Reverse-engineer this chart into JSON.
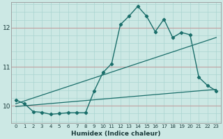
{
  "title": "",
  "xlabel": "Humidex (Indice chaleur)",
  "background_color": "#cce8e4",
  "grid_color_minor": "#aad4d0",
  "grid_color_major": "#c0a0a0",
  "line_color": "#1a6e6a",
  "xlim": [
    -0.5,
    23.5
  ],
  "ylim": [
    9.55,
    12.65
  ],
  "yticks": [
    10,
    11,
    12
  ],
  "xticks": [
    0,
    1,
    2,
    3,
    4,
    5,
    6,
    7,
    8,
    9,
    10,
    11,
    12,
    13,
    14,
    15,
    16,
    17,
    18,
    19,
    20,
    21,
    22,
    23
  ],
  "series1_x": [
    0,
    1,
    2,
    3,
    4,
    5,
    6,
    7,
    8,
    9,
    10,
    11,
    12,
    13,
    14,
    15,
    16,
    17,
    18,
    19,
    20,
    21,
    22,
    23
  ],
  "series1_y": [
    10.15,
    10.05,
    9.85,
    9.83,
    9.78,
    9.8,
    9.82,
    9.82,
    9.82,
    10.38,
    10.85,
    11.08,
    12.08,
    12.3,
    12.55,
    12.3,
    11.9,
    12.22,
    11.75,
    11.88,
    11.82,
    10.73,
    10.52,
    10.38
  ],
  "series2_x": [
    0,
    23
  ],
  "series2_y": [
    9.98,
    10.42
  ],
  "series3_x": [
    0,
    23
  ],
  "series3_y": [
    10.05,
    11.75
  ]
}
